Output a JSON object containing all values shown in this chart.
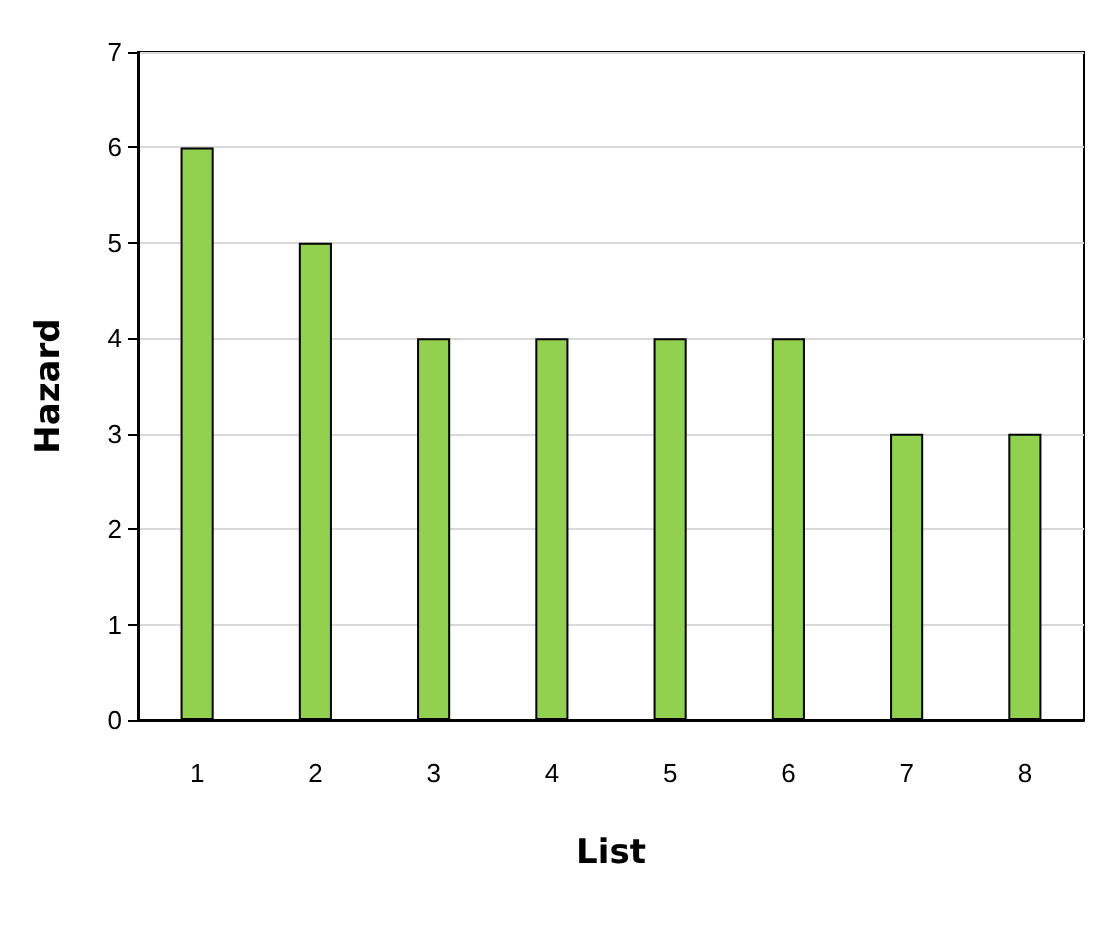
{
  "chart_data": {
    "type": "bar",
    "xlabel": "List",
    "ylabel": "Hazard",
    "categories": [
      "1",
      "2",
      "3",
      "4",
      "5",
      "6",
      "7",
      "8"
    ],
    "values": [
      6,
      5,
      4,
      4,
      4,
      4,
      3,
      3
    ],
    "color": "#92d050",
    "ylim": [
      0,
      7
    ],
    "yticks": [
      0,
      1,
      2,
      3,
      4,
      5,
      6,
      7
    ],
    "grid": "y"
  }
}
